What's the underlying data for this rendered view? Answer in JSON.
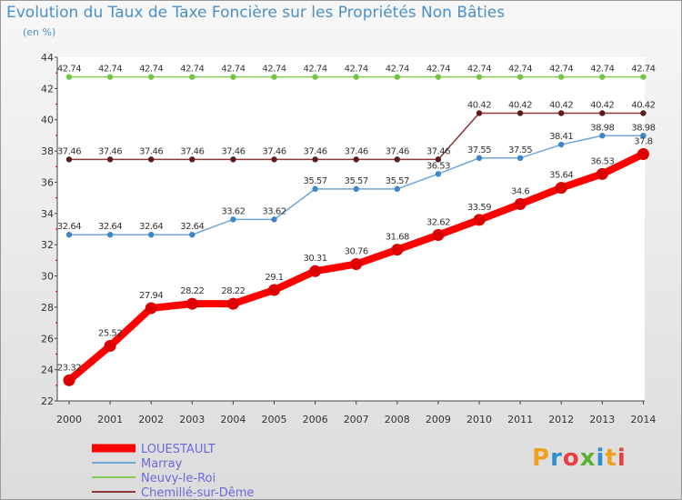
{
  "title": "Evolution du Taux de Taxe Foncière sur les Propriétés Non Bâties",
  "unit": "(en %)",
  "logo": "Proxiti",
  "chart_data": {
    "type": "line",
    "x": [
      "2000",
      "2001",
      "2002",
      "2003",
      "2004",
      "2005",
      "2006",
      "2007",
      "2008",
      "2009",
      "2010",
      "2011",
      "2012",
      "2013",
      "2014"
    ],
    "ylim": [
      22,
      44
    ],
    "yticks": [
      22,
      24,
      26,
      28,
      30,
      32,
      34,
      36,
      38,
      40,
      42,
      44
    ],
    "grid": false,
    "legend_position": "bottom-left",
    "series": [
      {
        "name": "LOUESTAULT",
        "color": "#ff0000",
        "marker": "#dd0000",
        "width": 8,
        "values": [
          23.32,
          25.52,
          27.94,
          28.22,
          28.22,
          29.1,
          30.31,
          30.76,
          31.68,
          32.62,
          33.59,
          34.6,
          35.64,
          36.53,
          37.8
        ]
      },
      {
        "name": "Marray",
        "color": "#6ea6d8",
        "marker": "#3f86c8",
        "width": 1.5,
        "values": [
          32.64,
          32.64,
          32.64,
          32.64,
          33.62,
          33.62,
          35.57,
          35.57,
          35.57,
          36.53,
          37.55,
          37.55,
          38.41,
          38.98,
          38.98
        ]
      },
      {
        "name": "Neuvy-le-Roi",
        "color": "#88cc55",
        "marker": "#77c444",
        "width": 1.5,
        "values": [
          42.74,
          42.74,
          42.74,
          42.74,
          42.74,
          42.74,
          42.74,
          42.74,
          42.74,
          42.74,
          42.74,
          42.74,
          42.74,
          42.74,
          42.74
        ]
      },
      {
        "name": "Chemillé-sur-Dême",
        "color": "#8b3a3a",
        "marker": "#5c1c1c",
        "width": 1.5,
        "values": [
          37.46,
          37.46,
          37.46,
          37.46,
          37.46,
          37.46,
          37.46,
          37.46,
          37.46,
          37.46,
          40.42,
          40.42,
          40.42,
          40.42,
          40.42
        ]
      }
    ]
  }
}
